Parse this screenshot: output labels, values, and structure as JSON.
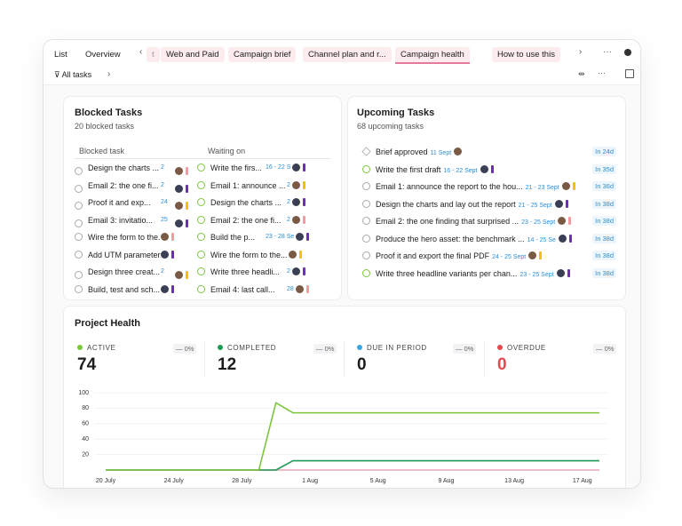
{
  "tabs": {
    "items": [
      "List",
      "Overview",
      "t",
      "Web and Paid",
      "Campaign brief",
      "Channel plan and r...",
      "Campaign health",
      "How to use this"
    ],
    "active": 6
  },
  "toolbar": {
    "filter": "All tasks"
  },
  "blocked": {
    "title": "Blocked Tasks",
    "subtitle": "20 blocked tasks",
    "headers": [
      "Blocked task",
      "Waiting on"
    ],
    "rows": [
      {
        "task": "Design the charts ...",
        "date": "2",
        "waiting": "Write the firs...",
        "waiting_date": "16 - 22 S"
      },
      {
        "task": "Email 2: the one fi...",
        "date": "2",
        "waiting": "Email 1: announce ...",
        "waiting_date": "2"
      },
      {
        "task": "Proof it and exp...",
        "date": "24",
        "waiting": "Design the charts ...",
        "waiting_date": "2"
      },
      {
        "task": "Email 3: invitatio...",
        "date": "25",
        "waiting": "Email 2: the one fi...",
        "waiting_date": "2"
      },
      {
        "task": "Wire the form to the...",
        "waiting": "Build the p...",
        "waiting_date": "23 - 28 Se"
      },
      {
        "task": "Add UTM parameter...",
        "waiting": "Wire the form to the..."
      },
      {
        "task": "Design three creat...",
        "date": "2",
        "waiting": "Write three headli...",
        "waiting_date": "2"
      },
      {
        "task": "Build, test and sch...",
        "waiting": "Email 4: last call...",
        "waiting_date": "28"
      }
    ]
  },
  "upcoming": {
    "title": "Upcoming Tasks",
    "subtitle": "68 upcoming tasks",
    "rows": [
      {
        "task": "Brief approved",
        "date": "11 Sept",
        "due": "In 24d"
      },
      {
        "task": "Write the first draft",
        "date": "16 - 22 Sept",
        "due": "In 35d"
      },
      {
        "task": "Email 1: announce the report to the hou...",
        "date": "21 - 23 Sept",
        "due": "In 36d"
      },
      {
        "task": "Design the charts and lay out the report",
        "date": "21 - 25 Sept",
        "due": "In 38d"
      },
      {
        "task": "Email 2: the one finding that surprised ...",
        "date": "23 - 25 Sept",
        "due": "In 38d"
      },
      {
        "task": "Produce the hero asset: the benchmark ...",
        "date": "14 - 25 Se",
        "due": "In 38d"
      },
      {
        "task": "Proof it and export the final PDF",
        "date": "24 - 25 Sept",
        "due": "In 38d"
      },
      {
        "task": "Write three headline variants per chan...",
        "date": "23 - 25 Sept",
        "due": "In 38d"
      }
    ]
  },
  "chart_data": {
    "type": "line",
    "title": "Project Health",
    "categories": [
      "20 July",
      null,
      null,
      null,
      "24 July",
      null,
      null,
      null,
      "28 July",
      null,
      null,
      null,
      "1 Aug",
      null,
      null,
      null,
      "5 Aug",
      null,
      null,
      null,
      "9 Aug",
      null,
      null,
      null,
      "13 Aug",
      null,
      null,
      null,
      "17 Aug",
      null
    ],
    "series": [
      {
        "name": "ACTIVE",
        "color": "#7cc63c",
        "total": 74,
        "change": "— 0%",
        "values": [
          0,
          0,
          0,
          0,
          0,
          0,
          0,
          0,
          0,
          0,
          87,
          74,
          74,
          74,
          74,
          74,
          74,
          74,
          74,
          74,
          74,
          74,
          74,
          74,
          74,
          74,
          74,
          74,
          74,
          74
        ]
      },
      {
        "name": "COMPLETED",
        "color": "#1f9a55",
        "total": 12,
        "change": "— 0%",
        "values": [
          0,
          0,
          0,
          0,
          0,
          0,
          0,
          0,
          0,
          0,
          0,
          12,
          12,
          12,
          12,
          12,
          12,
          12,
          12,
          12,
          12,
          12,
          12,
          12,
          12,
          12,
          12,
          12,
          12,
          12
        ]
      },
      {
        "name": "DUE IN PERIOD",
        "color": "#3aa6df",
        "total": 0,
        "change": "— 0%",
        "values": [
          0,
          0,
          0,
          0,
          0,
          0,
          0,
          0,
          0,
          0,
          0,
          0,
          0,
          0,
          0,
          0,
          0,
          0,
          0,
          0,
          0,
          0,
          0,
          0,
          0,
          0,
          0,
          0,
          0,
          0
        ]
      },
      {
        "name": "OVERDUE",
        "color": "#e5484d",
        "total": 0,
        "change": "— 0%",
        "values": [
          0,
          0,
          0,
          0,
          0,
          0,
          0,
          0,
          0,
          0,
          0,
          0,
          0,
          0,
          0,
          0,
          0,
          0,
          0,
          0,
          0,
          0,
          0,
          0,
          0,
          0,
          0,
          0,
          0,
          0
        ]
      }
    ],
    "ylim": [
      0,
      100
    ],
    "yticks": [
      20,
      40,
      60,
      80,
      100
    ],
    "grid": true
  }
}
